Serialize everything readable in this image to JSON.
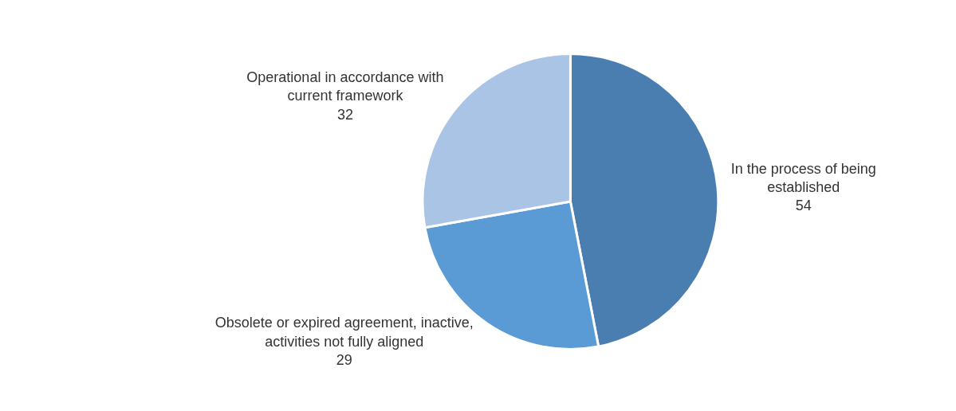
{
  "chart_data": {
    "type": "pie",
    "categories": [
      "In the process of being\nestablished",
      "Obsolete or expired agreement, inactive,\nactivities not fully aligned",
      "Operational in accordance with\ncurrent framework"
    ],
    "values": [
      54,
      29,
      32
    ],
    "colors": [
      "#4a7eb0",
      "#5b9bd5",
      "#a9c4e4"
    ],
    "data_labels": true,
    "legend": false
  }
}
